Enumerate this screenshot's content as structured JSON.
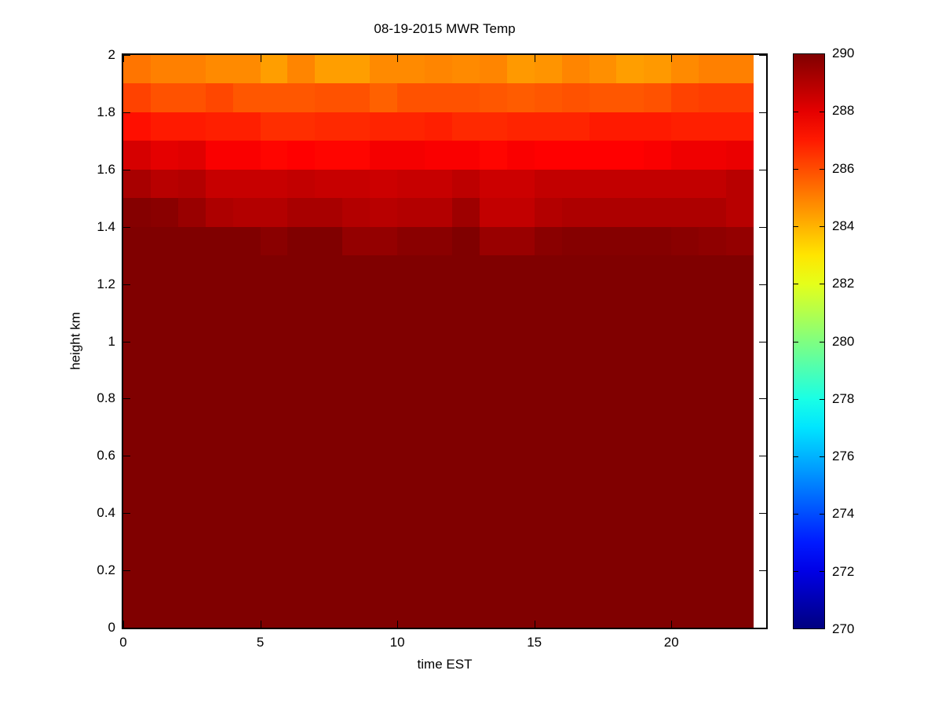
{
  "title": "08-19-2015 MWR Temp",
  "xlabel": "time EST",
  "ylabel": "height km",
  "chart_data": {
    "type": "heatmap",
    "title": "08-19-2015 MWR Temp",
    "xlabel": "time EST",
    "ylabel": "height km",
    "colormap": "jet",
    "grid": false,
    "x_range": [
      0,
      23.5
    ],
    "x_data_range": [
      0,
      23
    ],
    "y_range": [
      0,
      2
    ],
    "cell_width_hours": 1,
    "cell_height_km": 0.1,
    "x_ticks": [
      {
        "value": 0,
        "label": "0"
      },
      {
        "value": 5,
        "label": "5"
      },
      {
        "value": 10,
        "label": "10"
      },
      {
        "value": 15,
        "label": "15"
      },
      {
        "value": 20,
        "label": "20"
      }
    ],
    "y_ticks": [
      {
        "value": 0,
        "label": "0"
      },
      {
        "value": 0.2,
        "label": "0.2"
      },
      {
        "value": 0.4,
        "label": "0.4"
      },
      {
        "value": 0.6,
        "label": "0.6"
      },
      {
        "value": 0.8,
        "label": "0.8"
      },
      {
        "value": 1,
        "label": "1"
      },
      {
        "value": 1.2,
        "label": "1.2"
      },
      {
        "value": 1.4,
        "label": "1.4"
      },
      {
        "value": 1.6,
        "label": "1.6"
      },
      {
        "value": 1.8,
        "label": "1.8"
      },
      {
        "value": 2,
        "label": "2"
      }
    ],
    "colorbar": {
      "min": 270,
      "max": 290,
      "tick_labels": [
        {
          "value": 290,
          "label": "290"
        },
        {
          "value": 288,
          "label": "288"
        },
        {
          "value": 286,
          "label": "286"
        },
        {
          "value": 284,
          "label": "284"
        },
        {
          "value": 282,
          "label": "282"
        },
        {
          "value": 280,
          "label": "280"
        },
        {
          "value": 278,
          "label": "278"
        },
        {
          "value": 276,
          "label": "276"
        },
        {
          "value": 274,
          "label": "274"
        },
        {
          "value": 272,
          "label": "272"
        },
        {
          "value": 270,
          "label": "270"
        }
      ]
    },
    "row_order": "top-down, first row spans 1.9-2.0 km, last row spans 0.0-0.1 km",
    "row_top_heights": [
      2.0,
      1.9,
      1.8,
      1.7,
      1.6,
      1.5,
      1.4,
      1.3,
      1.2,
      1.1,
      1.0,
      0.9,
      0.8,
      0.7,
      0.6,
      0.5,
      0.4,
      0.3,
      0.2,
      0.1
    ],
    "values": [
      [
        285.2,
        285.0,
        285.0,
        284.8,
        284.8,
        284.4,
        284.9,
        284.4,
        284.4,
        284.8,
        284.8,
        284.9,
        284.8,
        284.9,
        284.5,
        284.6,
        284.9,
        284.7,
        284.4,
        284.5,
        284.8,
        285.0,
        285.0
      ],
      [
        286.2,
        285.9,
        285.9,
        286.1,
        285.8,
        285.8,
        285.8,
        285.9,
        285.9,
        285.6,
        285.9,
        285.9,
        285.9,
        285.8,
        285.7,
        285.8,
        285.9,
        285.8,
        285.8,
        285.9,
        286.2,
        286.3,
        286.3
      ],
      [
        287.2,
        287.0,
        287.0,
        286.9,
        286.9,
        286.6,
        286.6,
        286.7,
        286.7,
        286.8,
        286.8,
        286.9,
        286.7,
        286.7,
        286.8,
        286.8,
        286.8,
        287.0,
        287.0,
        287.0,
        286.9,
        286.9,
        286.9
      ],
      [
        288.3,
        288.0,
        288.1,
        287.6,
        287.6,
        287.4,
        287.5,
        287.4,
        287.4,
        287.7,
        287.7,
        287.6,
        287.6,
        287.4,
        287.6,
        287.5,
        287.5,
        287.5,
        287.5,
        287.6,
        287.8,
        287.8,
        287.9
      ],
      [
        289.2,
        288.9,
        289.0,
        288.6,
        288.6,
        288.6,
        288.7,
        288.6,
        288.6,
        288.5,
        288.6,
        288.6,
        288.8,
        288.5,
        288.5,
        288.7,
        288.7,
        288.7,
        288.7,
        288.7,
        288.7,
        288.7,
        288.9
      ],
      [
        289.9,
        289.8,
        289.5,
        289.1,
        289.0,
        289.0,
        289.2,
        289.2,
        289.0,
        288.9,
        289.0,
        289.0,
        289.4,
        288.7,
        288.7,
        289.0,
        289.1,
        289.1,
        289.1,
        289.1,
        289.1,
        289.1,
        288.9
      ],
      [
        290,
        290,
        290,
        290,
        290,
        289.8,
        290,
        290,
        289.6,
        289.6,
        289.8,
        289.8,
        290,
        289.5,
        289.5,
        289.8,
        289.9,
        289.9,
        289.9,
        289.9,
        289.8,
        289.7,
        289.6
      ],
      [
        290,
        290,
        290,
        290,
        290,
        290,
        290,
        290,
        290,
        290,
        290,
        290,
        290,
        290,
        290,
        290,
        290,
        290,
        290,
        290,
        290,
        290,
        290
      ],
      [
        290,
        290,
        290,
        290,
        290,
        290,
        290,
        290,
        290,
        290,
        290,
        290,
        290,
        290,
        290,
        290,
        290,
        290,
        290,
        290,
        290,
        290,
        290
      ],
      [
        290,
        290,
        290,
        290,
        290,
        290,
        290,
        290,
        290,
        290,
        290,
        290,
        290,
        290,
        290,
        290,
        290,
        290,
        290,
        290,
        290,
        290,
        290
      ],
      [
        290,
        290,
        290,
        290,
        290,
        290,
        290,
        290,
        290,
        290,
        290,
        290,
        290,
        290,
        290,
        290,
        290,
        290,
        290,
        290,
        290,
        290,
        290
      ],
      [
        290,
        290,
        290,
        290,
        290,
        290,
        290,
        290,
        290,
        290,
        290,
        290,
        290,
        290,
        290,
        290,
        290,
        290,
        290,
        290,
        290,
        290,
        290
      ],
      [
        290,
        290,
        290,
        290,
        290,
        290,
        290,
        290,
        290,
        290,
        290,
        290,
        290,
        290,
        290,
        290,
        290,
        290,
        290,
        290,
        290,
        290,
        290
      ],
      [
        290,
        290,
        290,
        290,
        290,
        290,
        290,
        290,
        290,
        290,
        290,
        290,
        290,
        290,
        290,
        290,
        290,
        290,
        290,
        290,
        290,
        290,
        290
      ],
      [
        290,
        290,
        290,
        290,
        290,
        290,
        290,
        290,
        290,
        290,
        290,
        290,
        290,
        290,
        290,
        290,
        290,
        290,
        290,
        290,
        290,
        290,
        290
      ],
      [
        290,
        290,
        290,
        290,
        290,
        290,
        290,
        290,
        290,
        290,
        290,
        290,
        290,
        290,
        290,
        290,
        290,
        290,
        290,
        290,
        290,
        290,
        290
      ],
      [
        290,
        290,
        290,
        290,
        290,
        290,
        290,
        290,
        290,
        290,
        290,
        290,
        290,
        290,
        290,
        290,
        290,
        290,
        290,
        290,
        290,
        290,
        290
      ],
      [
        290,
        290,
        290,
        290,
        290,
        290,
        290,
        290,
        290,
        290,
        290,
        290,
        290,
        290,
        290,
        290,
        290,
        290,
        290,
        290,
        290,
        290,
        290
      ],
      [
        290,
        290,
        290,
        290,
        290,
        290,
        290,
        290,
        290,
        290,
        290,
        290,
        290,
        290,
        290,
        290,
        290,
        290,
        290,
        290,
        290,
        290,
        290
      ],
      [
        290,
        290,
        290,
        290,
        290,
        290,
        290,
        290,
        290,
        290,
        290,
        290,
        290,
        290,
        290,
        290,
        290,
        290,
        290,
        290,
        290,
        290,
        290
      ]
    ]
  }
}
